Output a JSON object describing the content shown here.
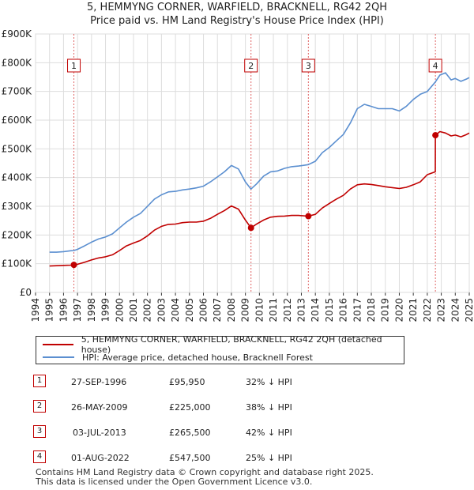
{
  "title_line1": "5, HEMMYNG CORNER, WARFIELD, BRACKNELL, RG42 2QH",
  "title_line2": "Price paid vs. HM Land Registry's House Price Index (HPI)",
  "chart_data": {
    "type": "line",
    "xlim": [
      1994,
      2025
    ],
    "ylim": [
      0,
      900000
    ],
    "y_ticks": [
      0,
      100000,
      200000,
      300000,
      400000,
      500000,
      600000,
      700000,
      800000,
      900000
    ],
    "y_tick_labels": [
      "£0",
      "£100K",
      "£200K",
      "£300K",
      "£400K",
      "£500K",
      "£600K",
      "£700K",
      "£800K",
      "£900K"
    ],
    "x_ticks": [
      1994,
      1995,
      1996,
      1997,
      1998,
      1999,
      2000,
      2001,
      2002,
      2003,
      2004,
      2005,
      2006,
      2007,
      2008,
      2009,
      2010,
      2011,
      2012,
      2013,
      2014,
      2015,
      2016,
      2017,
      2018,
      2019,
      2020,
      2021,
      2022,
      2023,
      2024,
      2025
    ],
    "x_tick_labels": [
      "1994",
      "1995",
      "1996",
      "1997",
      "1998",
      "1999",
      "2000",
      "2001",
      "2002",
      "2003",
      "2004",
      "2005",
      "2006",
      "2007",
      "2008",
      "2009",
      "2010",
      "2011",
      "2012",
      "2013",
      "2014",
      "2015",
      "2016",
      "2017",
      "2018",
      "2019",
      "2020",
      "2021",
      "2022",
      "2023",
      "2024",
      "2025"
    ],
    "grid": true,
    "series": [
      {
        "name": "HPI: Average price, detached house, Bracknell Forest",
        "color": "#5b8fd0",
        "x": [
          1995.0,
          1995.5,
          1996.0,
          1996.5,
          1996.74,
          1997.0,
          1997.5,
          1998.0,
          1998.5,
          1999.0,
          1999.5,
          2000.0,
          2000.5,
          2001.0,
          2001.5,
          2002.0,
          2002.5,
          2003.0,
          2003.5,
          2004.0,
          2004.5,
          2005.0,
          2005.5,
          2006.0,
          2006.5,
          2007.0,
          2007.5,
          2008.0,
          2008.5,
          2009.0,
          2009.4,
          2009.8,
          2010.3,
          2010.8,
          2011.3,
          2011.8,
          2012.3,
          2012.8,
          2013.5,
          2014.0,
          2014.5,
          2015.0,
          2015.5,
          2016.0,
          2016.5,
          2017.0,
          2017.5,
          2018.0,
          2018.5,
          2019.0,
          2019.5,
          2020.0,
          2020.5,
          2021.0,
          2021.5,
          2022.0,
          2022.58,
          2022.9,
          2023.3,
          2023.7,
          2024.0,
          2024.4,
          2024.8,
          2025.0
        ],
        "values": [
          140000,
          140000,
          142000,
          145000,
          146000,
          150000,
          162000,
          175000,
          186000,
          193000,
          204000,
          225000,
          245000,
          262000,
          275000,
          300000,
          325000,
          340000,
          350000,
          352000,
          357000,
          360000,
          364000,
          370000,
          385000,
          402000,
          420000,
          442000,
          430000,
          385000,
          360000,
          378000,
          405000,
          420000,
          423000,
          432000,
          438000,
          440000,
          445000,
          457000,
          487000,
          505000,
          528000,
          550000,
          590000,
          640000,
          655000,
          648000,
          640000,
          640000,
          640000,
          632000,
          648000,
          672000,
          690000,
          700000,
          733000,
          757000,
          765000,
          740000,
          745000,
          735000,
          743000,
          748000
        ]
      },
      {
        "name": "5, HEMMYNG CORNER, WARFIELD, BRACKNELL, RG42 2QH (detached house)",
        "color": "#c00000",
        "x": [
          1995.0,
          1995.5,
          1996.0,
          1996.5,
          1996.74,
          1997.0,
          1997.5,
          1998.0,
          1998.5,
          1999.0,
          1999.5,
          2000.0,
          2000.5,
          2001.0,
          2001.5,
          2002.0,
          2002.5,
          2003.0,
          2003.5,
          2004.0,
          2004.5,
          2005.0,
          2005.5,
          2006.0,
          2006.5,
          2007.0,
          2007.5,
          2008.0,
          2008.5,
          2009.0,
          2009.4,
          2009.8,
          2010.3,
          2010.8,
          2011.3,
          2011.8,
          2012.3,
          2012.8,
          2013.5,
          2014.0,
          2014.5,
          2015.0,
          2015.5,
          2016.0,
          2016.5,
          2017.0,
          2017.5,
          2018.0,
          2018.5,
          2019.0,
          2019.5,
          2020.0,
          2020.5,
          2021.0,
          2021.5,
          2022.0,
          2022.57,
          2022.58,
          2022.9,
          2023.3,
          2023.7,
          2024.0,
          2024.4,
          2024.8,
          2025.0
        ],
        "values": [
          92000,
          93000,
          94000,
          95000,
          95950,
          98000,
          105000,
          113000,
          120000,
          124000,
          131000,
          146000,
          162000,
          172000,
          181000,
          197000,
          217000,
          230000,
          237000,
          238000,
          243000,
          245000,
          245000,
          248000,
          258000,
          272000,
          285000,
          301000,
          290000,
          252000,
          225000,
          238000,
          252000,
          262000,
          265000,
          266000,
          268000,
          268000,
          265500,
          272000,
          294000,
          310000,
          325000,
          338000,
          360000,
          375000,
          378000,
          376000,
          372000,
          368000,
          365000,
          362000,
          366000,
          375000,
          385000,
          410000,
          420000,
          547500,
          560000,
          555000,
          545000,
          548000,
          542000,
          550000,
          555000
        ]
      }
    ],
    "annotations": [
      {
        "label": "1",
        "x": 1996.74,
        "y": 95950
      },
      {
        "label": "2",
        "x": 2009.4,
        "y": 225000
      },
      {
        "label": "3",
        "x": 2013.5,
        "y": 265500
      },
      {
        "label": "4",
        "x": 2022.58,
        "y": 547500
      }
    ]
  },
  "legend": {
    "property_label": "5, HEMMYNG CORNER, WARFIELD, BRACKNELL, RG42 2QH (detached house)",
    "hpi_label": "HPI: Average price, detached house, Bracknell Forest",
    "property_color": "#c00000",
    "hpi_color": "#5b8fd0"
  },
  "transactions": [
    {
      "num": "1",
      "date": "27-SEP-1996",
      "price": "£95,950",
      "hpi": "32% ↓ HPI"
    },
    {
      "num": "2",
      "date": "26-MAY-2009",
      "price": "£225,000",
      "hpi": "38% ↓ HPI"
    },
    {
      "num": "3",
      "date": "03-JUL-2013",
      "price": "£265,500",
      "hpi": "42% ↓ HPI"
    },
    {
      "num": "4",
      "date": "01-AUG-2022",
      "price": "£547,500",
      "hpi": "25% ↓ HPI"
    }
  ],
  "footer_line1": "Contains HM Land Registry data © Crown copyright and database right 2025.",
  "footer_line2": "This data is licensed under the Open Government Licence v3.0."
}
